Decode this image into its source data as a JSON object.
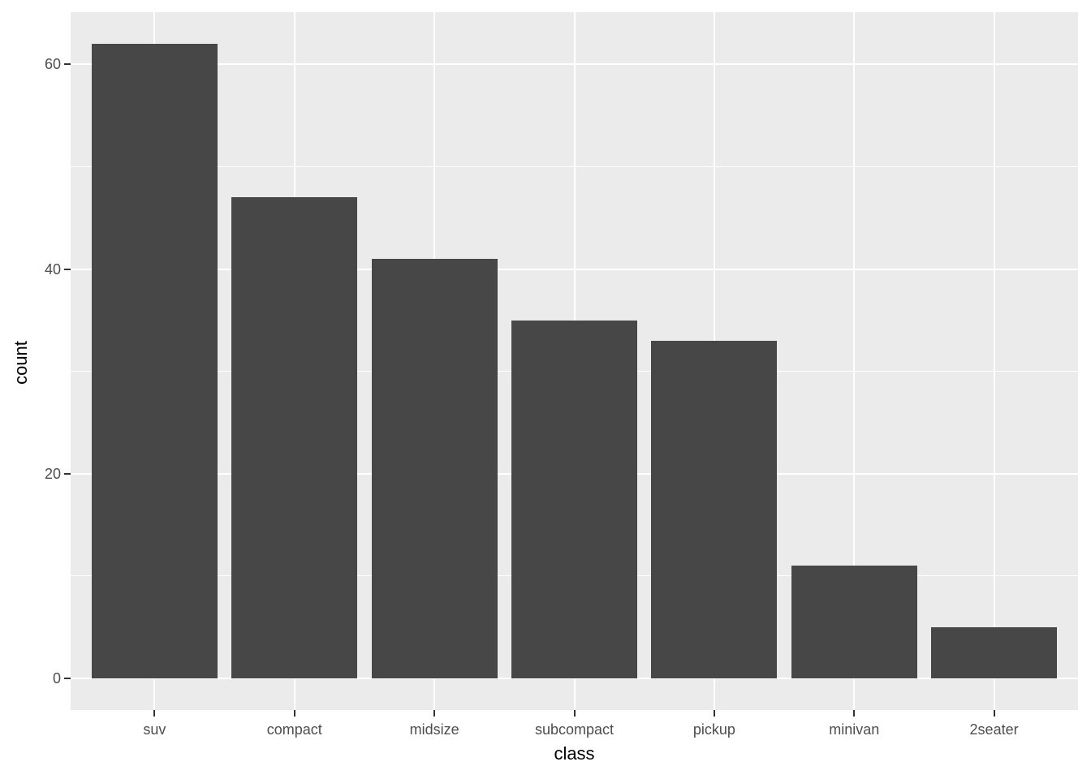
{
  "chart_data": {
    "type": "bar",
    "title": "",
    "xlabel": "class",
    "ylabel": "count",
    "categories": [
      "suv",
      "compact",
      "midsize",
      "subcompact",
      "pickup",
      "minivan",
      "2seater"
    ],
    "values": [
      62,
      47,
      41,
      35,
      33,
      11,
      5
    ],
    "y_ticks": [
      0,
      20,
      40,
      60
    ],
    "y_minor_ticks": [
      10,
      30,
      50
    ],
    "ylim": [
      -3.1,
      65.1
    ],
    "x_padding": 0.6,
    "bar_width_fraction": 0.9,
    "grid": "on",
    "legend": "none",
    "colors": {
      "bar_fill": "#474747",
      "panel_background": "#ebebeb",
      "grid_major": "#ffffff",
      "grid_minor": "#ffffff",
      "tick_label": "#4d4d4d",
      "axis_title": "#000000",
      "tick_mark": "#333333",
      "figure_background": "#ffffff"
    }
  }
}
